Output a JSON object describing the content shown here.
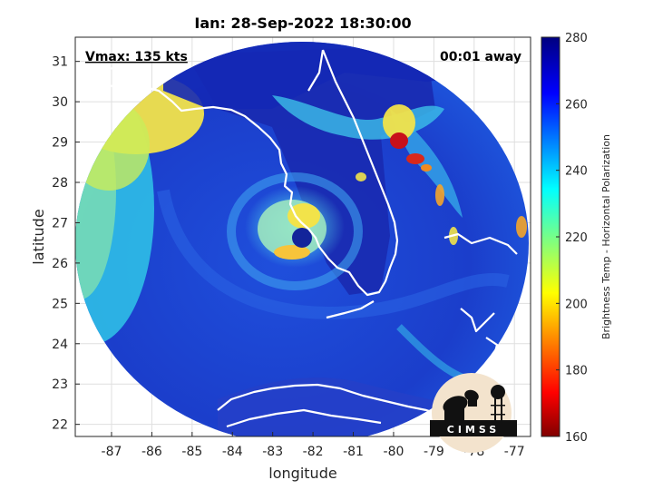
{
  "title": "Ian: 28-Sep-2022 18:30:00",
  "annotations": {
    "vmax": "Vmax: 135 kts",
    "away": "00:01 away"
  },
  "axes": {
    "xlabel": "longitude",
    "ylabel": "latitude",
    "xlim": [
      -87.9,
      -76.6
    ],
    "ylim": [
      21.7,
      31.6
    ],
    "xticks": [
      "-87",
      "-86",
      "-85",
      "-84",
      "-83",
      "-82",
      "-81",
      "-80",
      "-79",
      "-78",
      "-77"
    ],
    "yticks": [
      "22",
      "23",
      "24",
      "25",
      "26",
      "27",
      "28",
      "29",
      "30",
      "31"
    ],
    "grid": true
  },
  "colorbar": {
    "label": "Brightness Temp - Horizontal Polarization",
    "range": [
      160,
      280
    ],
    "ticks": [
      "160",
      "180",
      "200",
      "220",
      "240",
      "260",
      "280"
    ],
    "colormap": "jet"
  },
  "logo": {
    "text": "CIMSS"
  },
  "colors": {
    "deep_blue": "#1a2fb8",
    "mid_blue": "#1f63e6",
    "cyan": "#3fd6f0",
    "yellow": "#f5e64a",
    "red": "#c8101a",
    "coast": "#ffffff"
  }
}
